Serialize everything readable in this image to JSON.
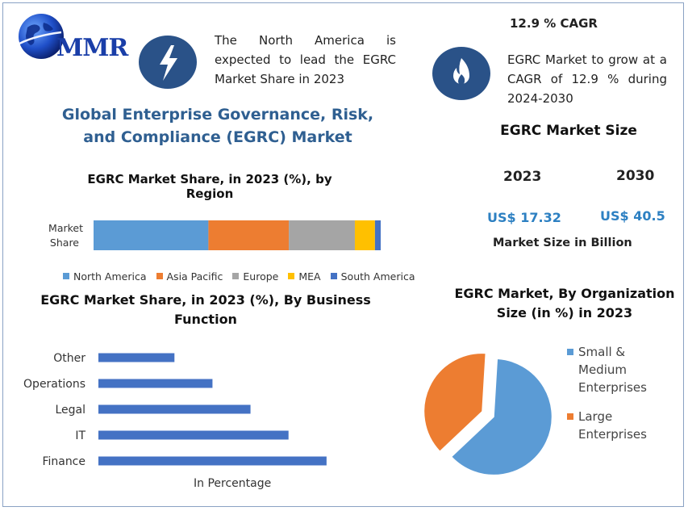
{
  "header": {
    "logo_text": "MMR",
    "blurb_left": "The North America is expected to lead the EGRC Market Share in 2023",
    "cagr_title": "12.9 % CAGR",
    "blurb_right": "EGRC Market to grow at a CAGR of 12.9 % during 2024-2030",
    "main_title": "Global Enterprise Governance, Risk, and Compliance (EGRC) Market"
  },
  "icons": {
    "bolt": "lightning-bolt-icon",
    "flame": "flame-icon",
    "globe": "globe-icon"
  },
  "market_size": {
    "title": "EGRC Market Size",
    "year_a": "2023",
    "year_b": "2030",
    "value_a": "US$ 17.32",
    "value_b": "US$ 40.5",
    "caption": "Market Size in Billion"
  },
  "colors": {
    "accent_blue": "#2f5f91",
    "value_blue": "#2d80c2",
    "icon_circle": "#2a5288"
  },
  "chart_data": [
    {
      "type": "bar",
      "stacked": true,
      "orientation": "horizontal",
      "title": "EGRC Market Share, in 2023 (%), by Region",
      "categories": [
        "Market Share"
      ],
      "category_label_lines": [
        "Market",
        "Share"
      ],
      "series": [
        {
          "name": "North America",
          "values": [
            40
          ],
          "color": "#5b9bd5"
        },
        {
          "name": "Asia Pacific",
          "values": [
            28
          ],
          "color": "#ed7d31"
        },
        {
          "name": "Europe",
          "values": [
            23
          ],
          "color": "#a5a5a5"
        },
        {
          "name": "MEA",
          "values": [
            7
          ],
          "color": "#ffc000"
        },
        {
          "name": "South America",
          "values": [
            2
          ],
          "color": "#4472c4"
        }
      ],
      "legend": "bottom"
    },
    {
      "type": "bar",
      "orientation": "horizontal",
      "title": "EGRC Market Share, in 2023 (%), By Business Function",
      "title_lines": [
        "EGRC Market Share, in 2023 (%), By Business",
        "Function"
      ],
      "categories": [
        "Other",
        "Operations",
        "Legal",
        "IT",
        "Finance"
      ],
      "values": [
        20,
        30,
        40,
        50,
        60
      ],
      "xlabel": "In Percentage",
      "xlim": [
        0,
        70
      ],
      "color": "#4472c4",
      "grid": false
    },
    {
      "type": "pie",
      "title": "EGRC Market, By Organization Size (in %) in 2023",
      "title_lines": [
        "EGRC Market, By Organization",
        "Size (in %) in 2023"
      ],
      "categories": [
        "Small & Medium Enterprises",
        "Large Enterprises"
      ],
      "legend_lines": [
        [
          "Small &",
          "Medium",
          "Enterprises"
        ],
        [
          "Large",
          "Enterprises"
        ]
      ],
      "values": [
        62,
        38
      ],
      "colors": [
        "#5b9bd5",
        "#ed7d31"
      ],
      "exploded": true,
      "legend": "right"
    }
  ]
}
